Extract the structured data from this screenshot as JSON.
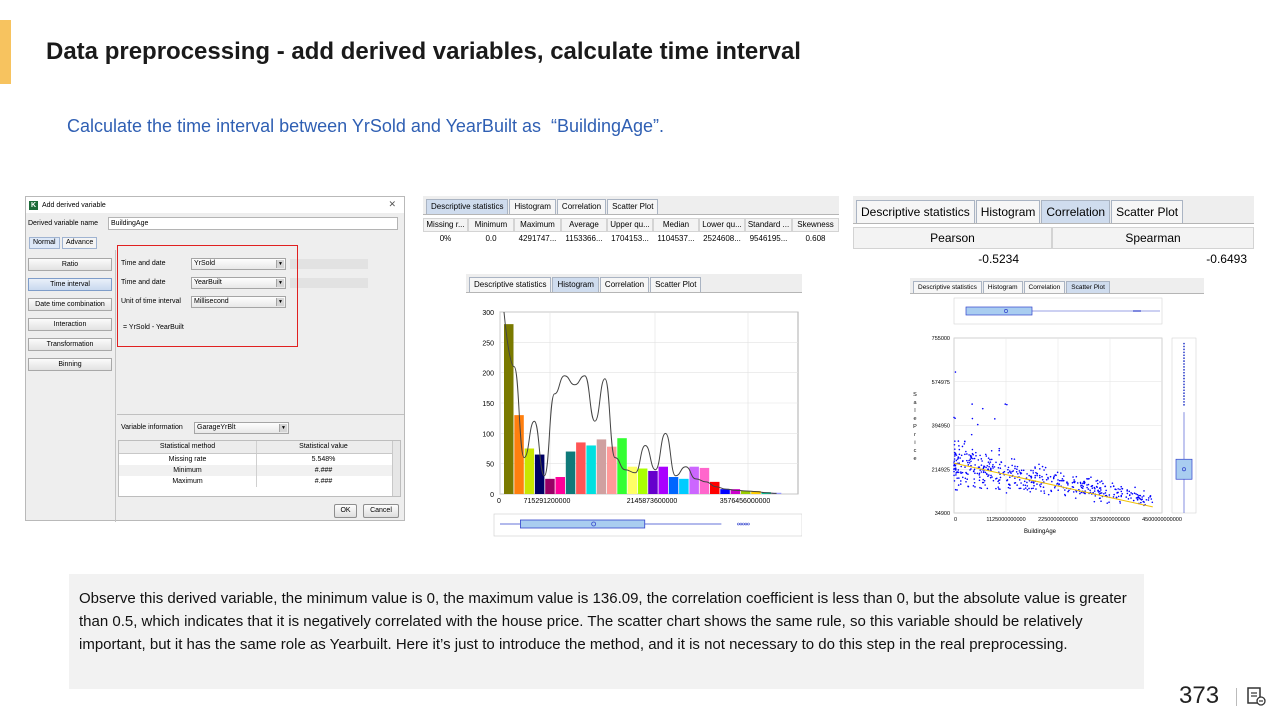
{
  "slide": {
    "title": "Data preprocessing - add derived variables, calculate time interval",
    "subtitle": "Calculate the time interval between YrSold and YearBuilt as  “BuildingAge”.",
    "note": "Observe this derived variable, the minimum value is 0, the maximum value is 136.09, the correlation coefficient is less than 0, but the absolute value is greater than 0.5, which indicates that it is negatively correlated with the house price. The scatter chart shows the same rule, so this variable should be relatively important, but it has the same role as Yearbuilt.  Here it’s just to introduce the method, and it is not necessary to do this step in the real preprocessing.",
    "page_number": "373",
    "accent_color": "#f7c35f",
    "subtitle_color": "#2f5fb3"
  },
  "dialog": {
    "title": "Add derived variable",
    "name_label": "Derived variable name",
    "name_value": "BuildingAge",
    "tabs": [
      "Normal",
      "Advance"
    ],
    "side_buttons": [
      "Ratio",
      "Time interval",
      "Date time combination",
      "Interaction",
      "Transformation",
      "Binning"
    ],
    "active_button": 1,
    "rows": [
      {
        "label": "Time and date",
        "value": "YrSold"
      },
      {
        "label": "Time and date",
        "value": "YearBuilt"
      },
      {
        "label": "Unit of time interval",
        "value": "Millisecond"
      }
    ],
    "formula": "= YrSold - YearBuilt",
    "var_info_label": "Variable information",
    "var_info_value": "GarageYrBlt",
    "table_headers": [
      "Statistical method",
      "Statistical value"
    ],
    "table_rows": [
      {
        "method": "Missing rate",
        "value": "5.548%"
      },
      {
        "method": "Minimum",
        "value": "#.###"
      },
      {
        "method": "Maximum",
        "value": "#.###"
      }
    ],
    "ok_label": "OK",
    "cancel_label": "Cancel",
    "close_icon": "close-icon"
  },
  "stats_panel": {
    "tabs": [
      "Descriptive statistics",
      "Histogram",
      "Correlation",
      "Scatter Plot"
    ],
    "active_tab": 0,
    "headers": [
      "Missing r...",
      "Minimum",
      "Maximum",
      "Average",
      "Upper qu...",
      "Median",
      "Lower qu...",
      "Standard ...",
      "Skewness"
    ],
    "values": [
      "0%",
      "0.0",
      "4291747...",
      "1153366...",
      "1704153...",
      "1104537...",
      "2524608...",
      "9546195...",
      "0.608"
    ]
  },
  "histogram_panel": {
    "tabs": [
      "Descriptive statistics",
      "Histogram",
      "Correlation",
      "Scatter Plot"
    ],
    "active_tab": 1
  },
  "corr_panel": {
    "tabs": [
      "Descriptive statistics",
      "Histogram",
      "Correlation",
      "Scatter Plot"
    ],
    "active_tab": 2,
    "headers": [
      "Pearson",
      "Spearman"
    ],
    "values": [
      "-0.5234",
      "-0.6493"
    ]
  },
  "scatter_panel": {
    "tabs": [
      "Descriptive statistics",
      "Histogram",
      "Correlation",
      "Scatter Plot"
    ],
    "active_tab": 3
  },
  "chart_data": [
    {
      "type": "bar",
      "title": "",
      "xlabel": "",
      "ylabel": "",
      "ylim": [
        0,
        300
      ],
      "yticks": [
        "0",
        "50",
        "100",
        "150",
        "200",
        "250",
        "300"
      ],
      "xticks": [
        "0",
        "715291200000",
        "2145873600000",
        "3576456000000"
      ],
      "values": [
        280,
        130,
        75,
        65,
        25,
        28,
        70,
        85,
        80,
        90,
        78,
        92,
        45,
        42,
        38,
        45,
        28,
        25,
        45,
        43,
        20,
        8,
        8,
        5,
        5,
        3,
        2
      ],
      "bar_colors": [
        "#7a7a00",
        "#ff7f0e",
        "#c8e600",
        "#000066",
        "#990066",
        "#ff0099",
        "#107a7a",
        "#ff5555",
        "#00e0e0",
        "#d0a0a0",
        "#ff9999",
        "#33ff33",
        "#ffff66",
        "#aaff00",
        "#6600cc",
        "#aa00ff",
        "#0066ff",
        "#00ccff",
        "#cc66ff",
        "#ff66cc",
        "#ff0000",
        "#0000ff",
        "#cc00cc",
        "#99cc00",
        "#ffcc00",
        "#00cc99",
        "#9999ff"
      ],
      "density_curve": true,
      "grid": true,
      "boxplot": {
        "min": 0,
        "q1": 24,
        "median": 110,
        "q3": 170,
        "max": 350
      }
    },
    {
      "type": "scatter",
      "title": "",
      "xlabel": "BuildingAge",
      "ylabel": "SalePrice",
      "xlim": [
        0,
        4500000000000
      ],
      "ylim": [
        34900,
        755000
      ],
      "xticks": [
        "0",
        "1125000000000",
        "2250000000000",
        "3375000000000",
        "4500000000000"
      ],
      "yticks": [
        "34900",
        "214925",
        "394950",
        "574975",
        "755000"
      ],
      "point_color": "#0000ff",
      "trend_line": {
        "color": "#f0c000",
        "from": [
          0,
          240000
        ],
        "to": [
          4300000000000,
          60000
        ]
      },
      "grid": true
    }
  ]
}
